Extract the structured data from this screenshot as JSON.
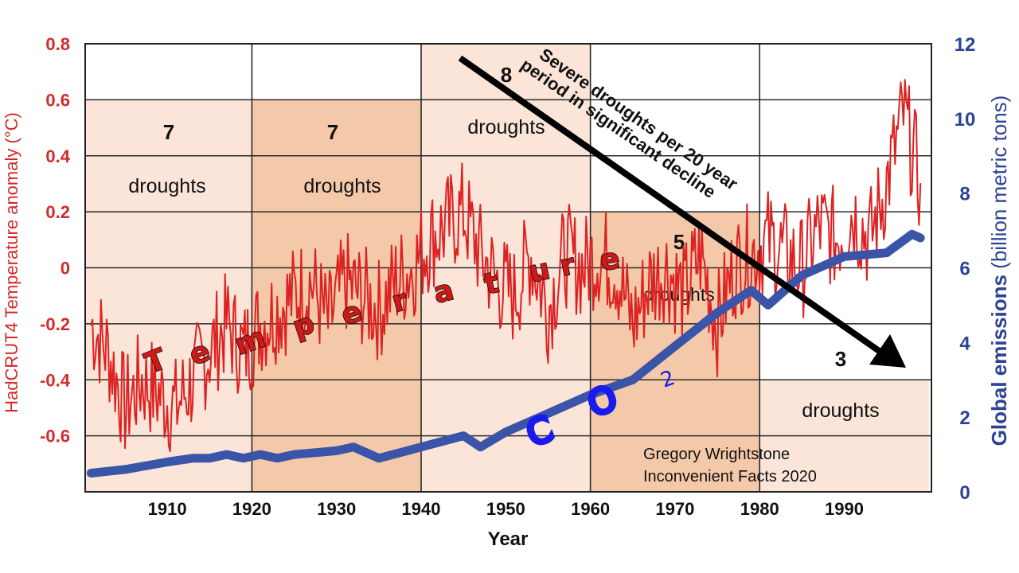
{
  "chart_data": {
    "type": "line",
    "title": "",
    "xlabel": "Year",
    "xlim": [
      1901,
      2000
    ],
    "x_ticks": [
      "1910",
      "1920",
      "1930",
      "1940",
      "1950",
      "1960",
      "1970",
      "1980",
      "1990"
    ],
    "grid": true,
    "left_axis": {
      "label": "HadCRUT4 Temperature anomaly (°C)",
      "range": [
        -0.8,
        0.8
      ],
      "ticks": [
        "0.8",
        "0.6",
        "0.4",
        "0.2",
        "0",
        "-0.2",
        "-0.4",
        "-0.6"
      ],
      "color": "#d42a2a"
    },
    "right_axis": {
      "label_bold": "Global emissions",
      "label_rest": " (billion metric tons)",
      "range": [
        0,
        12
      ],
      "ticks": [
        "12",
        "10",
        "8",
        "6",
        "4",
        "2",
        "0"
      ],
      "color": "#2e4393"
    },
    "series": [
      {
        "name": "Temperature",
        "axis": "left",
        "color": "#dd2222",
        "x": [
          1901,
          1903,
          1905,
          1907,
          1909,
          1911,
          1913,
          1915,
          1917,
          1919,
          1921,
          1923,
          1925,
          1927,
          1929,
          1931,
          1933,
          1935,
          1937,
          1939,
          1941,
          1943,
          1945,
          1947,
          1949,
          1951,
          1953,
          1955,
          1957,
          1959,
          1961,
          1963,
          1965,
          1967,
          1969,
          1971,
          1973,
          1975,
          1977,
          1979,
          1981,
          1983,
          1985,
          1987,
          1989,
          1991,
          1993,
          1995,
          1997,
          1999
        ],
        "y": [
          -0.2,
          -0.3,
          -0.5,
          -0.4,
          -0.45,
          -0.5,
          -0.4,
          -0.3,
          -0.2,
          -0.3,
          -0.2,
          -0.15,
          -0.1,
          -0.05,
          -0.2,
          -0.05,
          -0.1,
          -0.15,
          -0.05,
          0.0,
          0.1,
          0.15,
          0.2,
          0.05,
          -0.05,
          -0.1,
          0.05,
          -0.15,
          0.05,
          0.0,
          0.05,
          0.0,
          -0.2,
          -0.05,
          0.0,
          -0.1,
          0.05,
          -0.2,
          0.0,
          0.05,
          0.1,
          0.05,
          0.0,
          0.15,
          0.1,
          0.2,
          0.1,
          0.3,
          0.55,
          0.3
        ]
      },
      {
        "name": "CO2 emissions",
        "axis": "right",
        "color": "#3a55a8",
        "x": [
          1901,
          1905,
          1910,
          1913,
          1915,
          1917,
          1919,
          1921,
          1923,
          1925,
          1930,
          1932,
          1935,
          1940,
          1945,
          1947,
          1950,
          1955,
          1960,
          1965,
          1970,
          1975,
          1979,
          1981,
          1985,
          1990,
          1995,
          1998,
          1999
        ],
        "y": [
          0.5,
          0.6,
          0.8,
          0.9,
          0.9,
          1.0,
          0.9,
          1.0,
          0.9,
          1.0,
          1.1,
          1.2,
          0.9,
          1.2,
          1.5,
          1.2,
          1.6,
          2.1,
          2.6,
          3.0,
          3.9,
          4.8,
          5.4,
          5.0,
          5.8,
          6.3,
          6.4,
          6.9,
          6.8
        ]
      }
    ],
    "drought_periods": [
      {
        "start": 1900,
        "end": 1920,
        "count": "7",
        "label": "droughts",
        "top_value": 0.6,
        "shade": "light"
      },
      {
        "start": 1920,
        "end": 1940,
        "count": "7",
        "label": "droughts",
        "top_value": 0.6,
        "shade": "dark"
      },
      {
        "start": 1940,
        "end": 1960,
        "count": "8",
        "label": "droughts",
        "top_value": 0.8,
        "shade": "light"
      },
      {
        "start": 1960,
        "end": 1980,
        "count": "5",
        "label": "droughts",
        "top_value": 0.2,
        "shade": "dark"
      },
      {
        "start": 1980,
        "end": 2000,
        "count": "3",
        "label": "droughts",
        "top_value": -0.4,
        "shade": "light"
      }
    ],
    "annotations": {
      "arrow_line1": "Severe droughts per 20 year",
      "arrow_line2": "period in significant decline",
      "temperature_word": "Temperature",
      "co2_letters": [
        "C",
        "O"
      ],
      "co2_subscript": "2",
      "credit_line1": "Gregory Wrightstone",
      "credit_line2": "Inconvenient Facts 2020"
    }
  }
}
